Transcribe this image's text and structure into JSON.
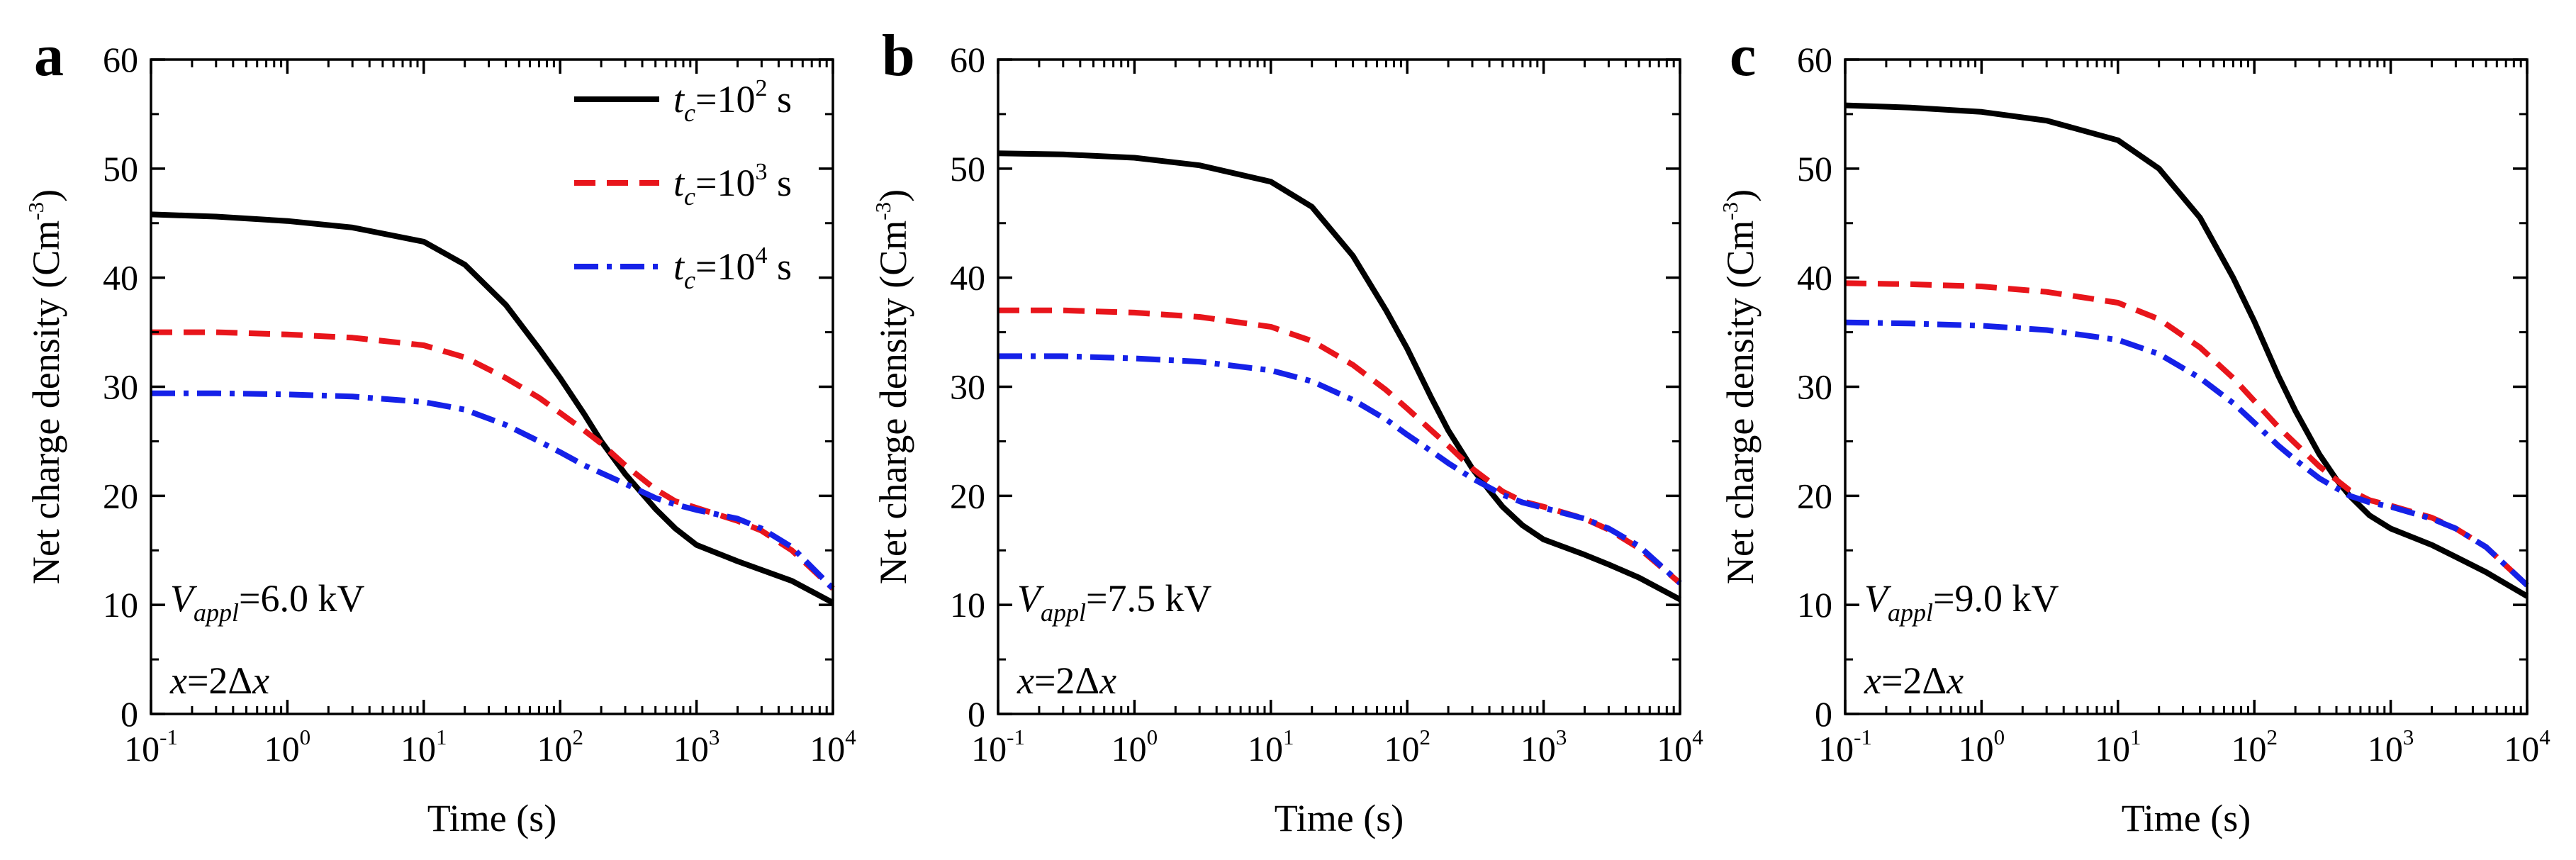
{
  "figure": {
    "colors": {
      "t_c_1e2": "#000000",
      "t_c_1e3": "#e8151b",
      "t_c_1e4": "#1521e8"
    },
    "legend": [
      {
        "var": "t",
        "sub": "c",
        "eq": "=10",
        "exp": "2",
        "unit": " s",
        "color": "#000000",
        "dash": "solid"
      },
      {
        "var": "t",
        "sub": "c",
        "eq": "=10",
        "exp": "3",
        "unit": " s",
        "color": "#e8151b",
        "dash": "dash"
      },
      {
        "var": "t",
        "sub": "c",
        "eq": "=10",
        "exp": "4",
        "unit": " s",
        "color": "#1521e8",
        "dash": "dashdot"
      }
    ]
  },
  "chart_data": [
    {
      "type": "line",
      "panel": "a",
      "xlabel": "Time (s)",
      "ylabel": "Net charge density (Cm",
      "ylabel_sup": "-3",
      "ylabel_close": ")",
      "xscale": "log",
      "xlim": [
        0.1,
        10000
      ],
      "ylim": [
        0,
        60
      ],
      "yticks": [
        0,
        10,
        20,
        30,
        40,
        50,
        60
      ],
      "xticks": [
        {
          "base": "10",
          "exp": "-1"
        },
        {
          "base": "10",
          "exp": "0"
        },
        {
          "base": "10",
          "exp": "1"
        },
        {
          "base": "10",
          "exp": "2"
        },
        {
          "base": "10",
          "exp": "3"
        },
        {
          "base": "10",
          "exp": "4"
        }
      ],
      "annotation": {
        "v": "V",
        "sub": "appl",
        "value": "=6.0 kV",
        "pos_var": "x",
        "pos_eq": "=2Δ",
        "pos_var2": "x"
      },
      "legend": "top-right",
      "series": [
        {
          "name": "t_c=10^2 s",
          "x": [
            0.1,
            0.3,
            1,
            3,
            10,
            20,
            40,
            70,
            100,
            150,
            200,
            300,
            400,
            500,
            700,
            1000,
            2000,
            3000,
            5000,
            10000
          ],
          "y": [
            45.8,
            45.6,
            45.2,
            44.6,
            43.3,
            41.2,
            37.5,
            33.5,
            30.8,
            27.5,
            25,
            22,
            20.2,
            18.8,
            17,
            15.5,
            14,
            13.2,
            12.2,
            10.2
          ]
        },
        {
          "name": "t_c=10^3 s",
          "x": [
            0.1,
            0.3,
            1,
            3,
            10,
            20,
            40,
            70,
            100,
            150,
            200,
            300,
            500,
            700,
            1000,
            2000,
            3000,
            5000,
            10000
          ],
          "y": [
            35,
            35,
            34.8,
            34.5,
            33.8,
            32.7,
            30.8,
            29,
            27.6,
            26,
            24.8,
            22.8,
            20.6,
            19.5,
            18.9,
            17.7,
            16.8,
            15,
            11.5
          ]
        },
        {
          "name": "t_c=10^4 s",
          "x": [
            0.1,
            0.3,
            1,
            3,
            10,
            20,
            40,
            70,
            100,
            150,
            200,
            300,
            500,
            700,
            1000,
            2000,
            3000,
            5000,
            10000
          ],
          "y": [
            29.4,
            29.4,
            29.3,
            29.1,
            28.6,
            27.9,
            26.5,
            25,
            24,
            22.8,
            22.1,
            21.1,
            19.8,
            19.2,
            18.7,
            17.9,
            17,
            15.3,
            11.5
          ]
        }
      ]
    },
    {
      "type": "line",
      "panel": "b",
      "xlabel": "Time (s)",
      "ylabel": "Net charge density (Cm",
      "ylabel_sup": "-3",
      "ylabel_close": ")",
      "xscale": "log",
      "xlim": [
        0.1,
        10000
      ],
      "ylim": [
        0,
        60
      ],
      "yticks": [
        0,
        10,
        20,
        30,
        40,
        50,
        60
      ],
      "xticks": [
        {
          "base": "10",
          "exp": "-1"
        },
        {
          "base": "10",
          "exp": "0"
        },
        {
          "base": "10",
          "exp": "1"
        },
        {
          "base": "10",
          "exp": "2"
        },
        {
          "base": "10",
          "exp": "3"
        },
        {
          "base": "10",
          "exp": "4"
        }
      ],
      "annotation": {
        "v": "V",
        "sub": "appl",
        "value": "=7.5 kV",
        "pos_var": "x",
        "pos_eq": "=2Δ",
        "pos_var2": "x"
      },
      "legend": "",
      "series": [
        {
          "name": "t_c=10^2 s",
          "x": [
            0.1,
            0.3,
            1,
            3,
            10,
            20,
            40,
            70,
            100,
            150,
            200,
            300,
            400,
            500,
            700,
            1000,
            2000,
            3000,
            5000,
            10000
          ],
          "y": [
            51.4,
            51.3,
            51,
            50.3,
            48.8,
            46.5,
            42,
            37,
            33.5,
            29,
            26,
            22.5,
            20.5,
            19,
            17.3,
            16,
            14.6,
            13.7,
            12.5,
            10.5
          ]
        },
        {
          "name": "t_c=10^3 s",
          "x": [
            0.1,
            0.3,
            1,
            3,
            10,
            20,
            40,
            70,
            100,
            150,
            200,
            300,
            500,
            700,
            1000,
            2000,
            3000,
            5000,
            10000
          ],
          "y": [
            37,
            37,
            36.8,
            36.4,
            35.5,
            34.2,
            32,
            29.7,
            28,
            26,
            24.6,
            22.5,
            20.4,
            19.5,
            19,
            17.9,
            16.9,
            15.2,
            12
          ]
        },
        {
          "name": "t_c=10^4 s",
          "x": [
            0.1,
            0.3,
            1,
            3,
            10,
            20,
            40,
            70,
            100,
            150,
            200,
            300,
            500,
            700,
            1000,
            2000,
            3000,
            5000,
            10000
          ],
          "y": [
            32.8,
            32.8,
            32.6,
            32.3,
            31.5,
            30.5,
            28.8,
            27,
            25.6,
            24.1,
            23,
            21.6,
            20.1,
            19.4,
            18.9,
            17.9,
            17,
            15.4,
            12
          ]
        }
      ]
    },
    {
      "type": "line",
      "panel": "c",
      "xlabel": "Time (s)",
      "ylabel": "Net charge density (Cm",
      "ylabel_sup": "-3",
      "ylabel_close": ")",
      "xscale": "log",
      "xlim": [
        0.1,
        10000
      ],
      "ylim": [
        0,
        60
      ],
      "yticks": [
        0,
        10,
        20,
        30,
        40,
        50,
        60
      ],
      "xticks": [
        {
          "base": "10",
          "exp": "-1"
        },
        {
          "base": "10",
          "exp": "0"
        },
        {
          "base": "10",
          "exp": "1"
        },
        {
          "base": "10",
          "exp": "2"
        },
        {
          "base": "10",
          "exp": "3"
        },
        {
          "base": "10",
          "exp": "4"
        }
      ],
      "annotation": {
        "v": "V",
        "sub": "appl",
        "value": "=9.0 kV",
        "pos_var": "x",
        "pos_eq": "=2Δ",
        "pos_var2": "x"
      },
      "legend": "",
      "series": [
        {
          "name": "t_c=10^2 s",
          "x": [
            0.1,
            0.3,
            1,
            3,
            10,
            20,
            40,
            70,
            100,
            150,
            200,
            300,
            400,
            500,
            700,
            1000,
            2000,
            3000,
            5000,
            10000
          ],
          "y": [
            55.8,
            55.6,
            55.2,
            54.4,
            52.6,
            50,
            45.5,
            40,
            36,
            31,
            27.8,
            23.8,
            21.5,
            20,
            18.2,
            17,
            15.5,
            14.4,
            13,
            10.8
          ]
        },
        {
          "name": "t_c=10^3 s",
          "x": [
            0.1,
            0.3,
            1,
            3,
            10,
            20,
            40,
            70,
            100,
            150,
            200,
            300,
            500,
            700,
            1000,
            2000,
            3000,
            5000,
            10000
          ],
          "y": [
            39.5,
            39.4,
            39.2,
            38.7,
            37.7,
            36.2,
            33.6,
            30.8,
            28.7,
            26.3,
            24.8,
            22.7,
            20.5,
            19.6,
            19.1,
            18,
            17,
            15.3,
            11.8
          ]
        },
        {
          "name": "t_c=10^4 s",
          "x": [
            0.1,
            0.3,
            1,
            3,
            10,
            20,
            40,
            70,
            100,
            150,
            200,
            300,
            500,
            700,
            1000,
            2000,
            3000,
            5000,
            10000
          ],
          "y": [
            35.9,
            35.8,
            35.6,
            35.2,
            34.3,
            33,
            30.8,
            28.5,
            26.7,
            24.6,
            23.3,
            21.6,
            20,
            19.4,
            19,
            17.9,
            17,
            15.3,
            11.8
          ]
        }
      ]
    }
  ]
}
